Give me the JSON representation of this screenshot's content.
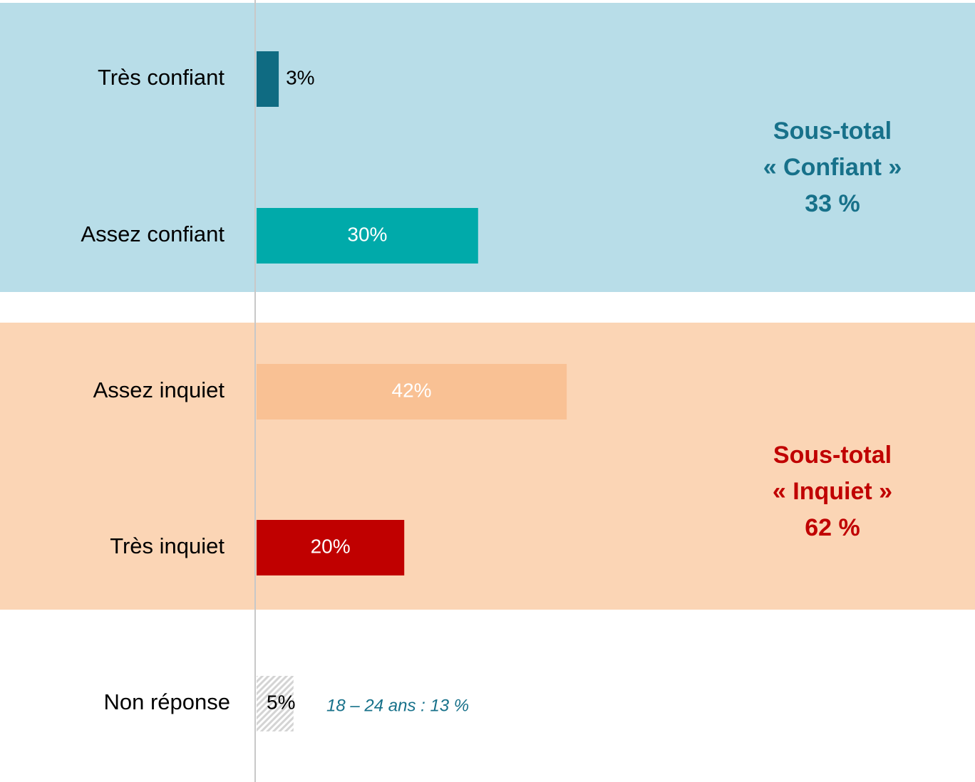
{
  "chart_data": {
    "type": "bar",
    "orientation": "horizontal",
    "categories": [
      "Très confiant",
      "Assez confiant",
      "Assez inquiet",
      "Très inquiet",
      "Non réponse"
    ],
    "values": [
      3,
      30,
      42,
      20,
      5
    ],
    "value_labels": [
      "3%",
      "30%",
      "42%",
      "20%",
      "5%"
    ],
    "colors": [
      "#0f6b82",
      "#00aaaa",
      "#f9c194",
      "#c00000",
      "#d4d4d4"
    ],
    "hatched": [
      false,
      false,
      false,
      false,
      true
    ],
    "xlim": [
      0,
      100
    ],
    "annotations": [
      {
        "lines": [
          "Sous-total",
          "« Confiant »",
          "33 %"
        ],
        "color": "#17718a"
      },
      {
        "lines": [
          "Sous-total",
          "« Inquiet »",
          "62 %"
        ],
        "color": "#c00000"
      }
    ],
    "note": {
      "text": "18 – 24 ans : 13 %",
      "color": "#17718a"
    }
  }
}
